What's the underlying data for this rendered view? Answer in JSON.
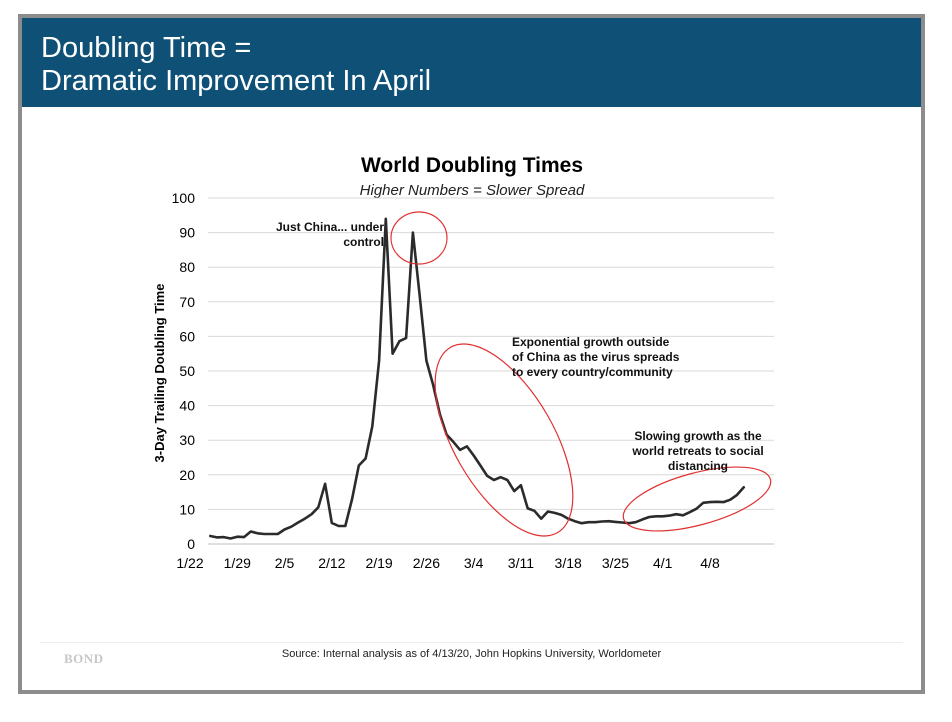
{
  "slide": {
    "title_line1": "Doubling Time =",
    "title_line2": "Dramatic Improvement In April",
    "source": "Source: Internal analysis as of 4/13/20, John Hopkins University, Worldometer",
    "logo_text": "BOND"
  },
  "colors": {
    "header_bg": "#0f5077",
    "line": "#2b2b2b",
    "annotation": "#e03030",
    "gridline": "#d9d9d9"
  },
  "chart_data": {
    "type": "line",
    "title": "World Doubling Times",
    "subtitle": "Higher Numbers = Slower Spread",
    "xlabel": "",
    "ylabel": "3-Day Trailing Doubling Time",
    "ylim": [
      0,
      100
    ],
    "yticks": [
      0,
      10,
      20,
      30,
      40,
      50,
      60,
      70,
      80,
      90,
      100
    ],
    "xticks": [
      "1/22",
      "1/29",
      "2/5",
      "2/12",
      "2/19",
      "2/26",
      "3/4",
      "3/11",
      "3/18",
      "3/25",
      "4/1",
      "4/8"
    ],
    "x_start": "1/22",
    "x_end": "4/13",
    "grid": true,
    "series": [
      {
        "name": "World Doubling Time",
        "day_index": [
          3,
          4,
          5,
          6,
          7,
          8,
          9,
          10,
          11,
          12,
          13,
          14,
          15,
          16,
          17,
          18,
          19,
          20,
          21,
          22,
          23,
          24,
          25,
          26,
          27,
          28,
          29,
          30,
          31,
          32,
          33,
          34,
          35,
          36,
          37,
          38,
          39,
          40,
          41,
          42,
          43,
          44,
          45,
          46,
          47,
          48,
          49,
          50,
          51,
          52,
          53,
          54,
          55,
          56,
          57,
          58,
          59,
          60,
          61,
          62,
          63,
          64,
          65,
          66,
          67,
          68,
          69,
          70,
          71,
          72,
          73,
          74,
          75,
          76,
          77,
          78,
          79,
          80,
          81,
          82
        ],
        "values": [
          2.3,
          1.9,
          2.0,
          1.6,
          2.1,
          2.0,
          3.6,
          3.1,
          2.9,
          2.9,
          2.9,
          4.2,
          5.0,
          6.2,
          7.3,
          8.6,
          10.6,
          17.4,
          6.1,
          5.2,
          5.2,
          13.0,
          22.7,
          24.7,
          34.0,
          53.0,
          94.0,
          55.0,
          58.6,
          59.5,
          90.0,
          72.0,
          53.0,
          46.0,
          37.5,
          31.6,
          29.5,
          27.2,
          28.2,
          25.6,
          22.7,
          19.7,
          18.5,
          19.3,
          18.5,
          15.3,
          17.0,
          10.3,
          9.6,
          7.3,
          9.4,
          9.0,
          8.4,
          7.3,
          6.6,
          6.0,
          6.3,
          6.3,
          6.5,
          6.6,
          6.4,
          6.2,
          6.0,
          6.3,
          7.1,
          7.8,
          8.0,
          8.0,
          8.2,
          8.6,
          8.3,
          9.2,
          10.2,
          11.9,
          12.1,
          12.2,
          12.1,
          12.8,
          14.2,
          16.4
        ]
      }
    ],
    "annotations": [
      {
        "id": "china",
        "lines": [
          "Just China... under",
          "control"
        ]
      },
      {
        "id": "exponential",
        "lines": [
          "Exponential growth outside",
          "of China as the virus spreads",
          "to every country/community"
        ]
      },
      {
        "id": "slowing",
        "lines": [
          "Slowing growth as the",
          "world retreats to social",
          "distancing"
        ]
      }
    ]
  }
}
